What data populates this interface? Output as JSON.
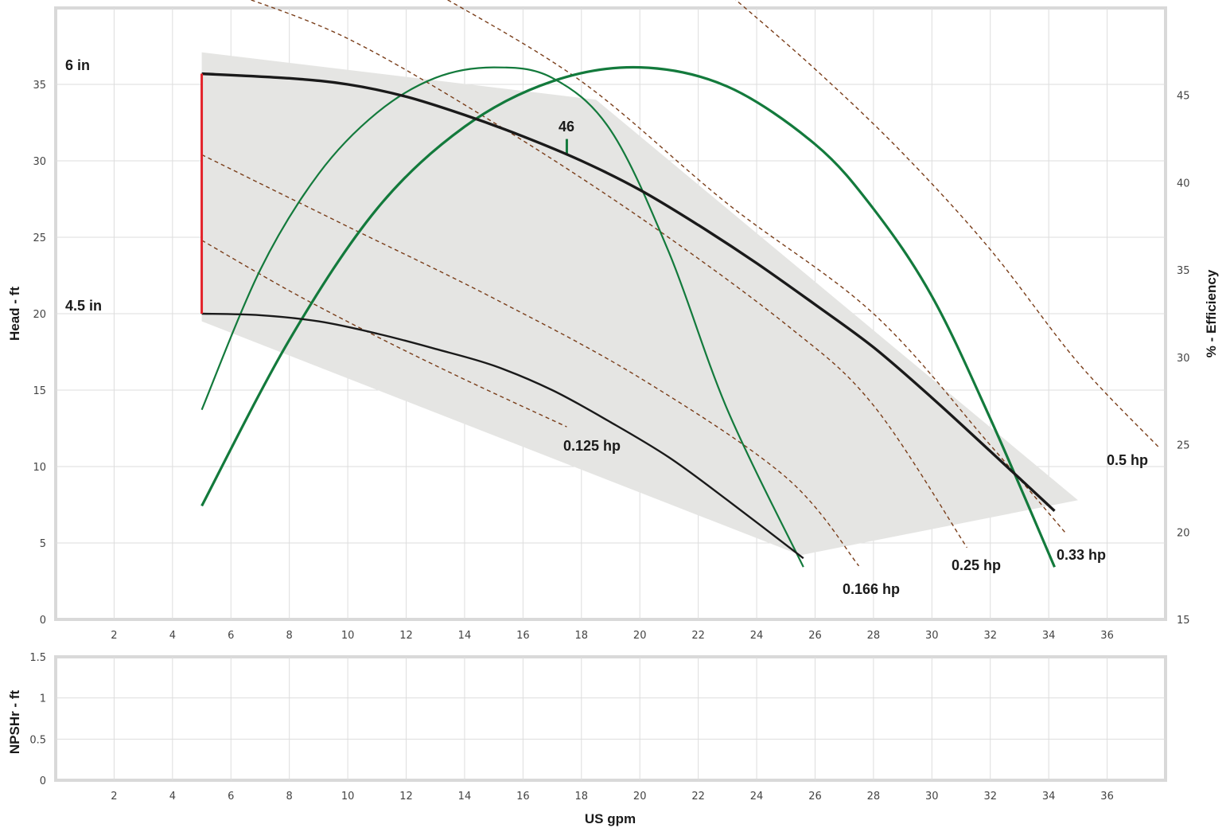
{
  "chart_data": [
    {
      "type": "line",
      "panel": "head",
      "xlabel": "",
      "ylabel": "Head - ft",
      "y2label": "% - Efficiency",
      "xlim": [
        0,
        38
      ],
      "ylim": [
        0,
        40
      ],
      "y2lim": [
        15,
        50
      ],
      "x_ticks": [
        2,
        4,
        6,
        8,
        10,
        12,
        14,
        16,
        18,
        20,
        22,
        24,
        26,
        28,
        30,
        32,
        34,
        36
      ],
      "y_ticks": [
        0,
        5,
        10,
        15,
        20,
        25,
        30,
        35
      ],
      "y2_ticks": [
        15,
        20,
        25,
        30,
        35,
        40,
        45
      ],
      "grid": true,
      "colors": {
        "head_curve": "#1a1a1a",
        "efficiency_curve": "#137a3c",
        "power_curve": "#7a3e1a",
        "range_line": "#e3242b",
        "operating_region": "#e5e5e3",
        "grid": "#dddddd",
        "frame": "#d9d9d9"
      },
      "region": [
        [
          5,
          37.1
        ],
        [
          18.5,
          34.0
        ],
        [
          35,
          7.8
        ],
        [
          25.5,
          4.2
        ],
        [
          5,
          19.5
        ]
      ],
      "range_line": {
        "x": 5,
        "y": [
          20.0,
          35.7
        ]
      },
      "head_curves": [
        {
          "name": "6 in",
          "x": [
            5,
            8,
            10,
            12,
            14,
            16,
            18,
            20,
            22,
            24,
            26,
            28,
            30,
            32,
            34.2
          ],
          "y": [
            35.7,
            35.4,
            35.0,
            34.2,
            33.0,
            31.6,
            30.0,
            28.1,
            25.8,
            23.3,
            20.6,
            17.8,
            14.5,
            11.0,
            7.1
          ]
        },
        {
          "name": "4.5 in",
          "x": [
            5,
            7,
            9,
            11,
            13,
            15,
            17,
            19,
            21,
            23,
            25.6
          ],
          "y": [
            20.0,
            19.9,
            19.5,
            18.7,
            17.7,
            16.6,
            15.0,
            12.9,
            10.6,
            7.8,
            4.0
          ]
        }
      ],
      "efficiency_curves": [
        {
          "x": [
            5,
            7,
            9,
            11,
            13,
            15,
            17,
            19,
            21,
            23,
            25.6
          ],
          "y": [
            27,
            35,
            40.5,
            44,
            46,
            46.6,
            46,
            43,
            36,
            27,
            18
          ]
        },
        {
          "x": [
            5,
            8,
            11,
            14,
            17,
            20,
            23,
            26,
            28,
            30,
            32,
            34.2
          ],
          "y": [
            21.5,
            31,
            38.5,
            43.2,
            45.8,
            46.6,
            45.5,
            42.2,
            38.5,
            33.5,
            26.5,
            18
          ]
        }
      ],
      "efficiency_marker": {
        "label": "46",
        "x": 17.5,
        "y": 42.5
      },
      "power_curves": [
        {
          "name": "0.125 hp",
          "x": [
            5,
            8,
            11,
            14,
            17.5
          ],
          "y": [
            24.8,
            21.5,
            18.5,
            15.7,
            12.6
          ]
        },
        {
          "name": "0.166 hp",
          "x": [
            5,
            10,
            15,
            20,
            25,
            27.5
          ],
          "y": [
            30.4,
            25.7,
            21.0,
            15.8,
            9.3,
            3.5
          ]
        },
        {
          "name": "0.25 hp",
          "x": [
            6,
            10,
            15,
            20,
            25,
            28,
            31.2
          ],
          "y": [
            41.0,
            38.0,
            32.5,
            26.3,
            19.3,
            14.0,
            4.7
          ]
        },
        {
          "name": "0.33 hp",
          "x": [
            13,
            18,
            23,
            28,
            32,
            34.6
          ],
          "y": [
            41.0,
            35.2,
            27.2,
            20.0,
            11.4,
            5.6
          ]
        },
        {
          "name": "0.5 hp",
          "x": [
            23,
            26,
            29,
            32,
            35,
            37.8
          ],
          "y": [
            41.0,
            36.0,
            30.5,
            24.2,
            16.8,
            11.2
          ]
        }
      ],
      "labels": [
        "6 in",
        "4.5 in",
        "46",
        "0.125 hp",
        "0.166 hp",
        "0.25 hp",
        "0.33 hp",
        "0.5 hp"
      ]
    },
    {
      "type": "line",
      "panel": "npshr",
      "xlabel": "US gpm",
      "ylabel": "NPSHr - ft",
      "xlim": [
        0,
        38
      ],
      "ylim": [
        0,
        1.5
      ],
      "x_ticks": [
        2,
        4,
        6,
        8,
        10,
        12,
        14,
        16,
        18,
        20,
        22,
        24,
        26,
        28,
        30,
        32,
        34,
        36
      ],
      "y_ticks": [
        "0",
        "0.5",
        "1",
        "1.5"
      ],
      "grid": true,
      "series": []
    }
  ]
}
